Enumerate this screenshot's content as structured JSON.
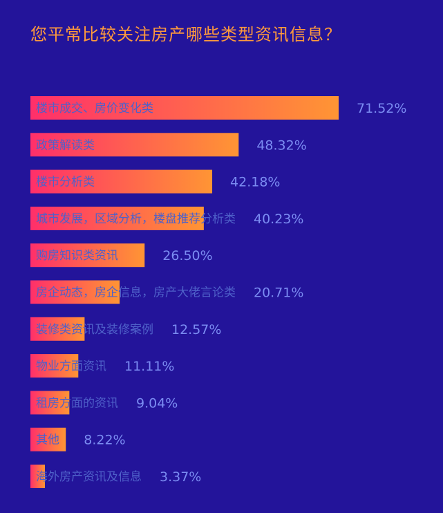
{
  "chart_data": {
    "type": "bar",
    "orientation": "horizontal",
    "title": "您平常比较关注房产哪些类型资讯信息？",
    "categories": [
      "楼市成交、房价变化类",
      "政策解读类",
      "楼市分析类",
      "城市发展，区域分析，楼盘推荐分析类",
      "购房知识类资讯",
      "房企动态，房企信息，房产大佬言论类",
      "装修类资讯及装修案例",
      "物业方面资讯",
      "租房方面的资讯",
      "其他",
      "海外房产资讯及信息"
    ],
    "values": [
      71.52,
      48.32,
      42.18,
      40.23,
      26.5,
      20.71,
      12.57,
      11.11,
      9.04,
      8.22,
      3.37
    ],
    "value_labels": [
      "71.52%",
      "48.32%",
      "42.18%",
      "40.23%",
      "26.50%",
      "20.71%",
      "12.57%",
      "11.11%",
      "9.04%",
      "8.22%",
      "3.37%"
    ],
    "xlim": [
      0,
      100
    ],
    "grid": false,
    "legend": "none",
    "colors": {
      "background": "#23149a",
      "title": "#ff9a3c",
      "bar_start": "#ff2f6a",
      "bar_end": "#ff9534",
      "category_text": "#4f61c9",
      "value_text": "#7b8cf2"
    }
  }
}
